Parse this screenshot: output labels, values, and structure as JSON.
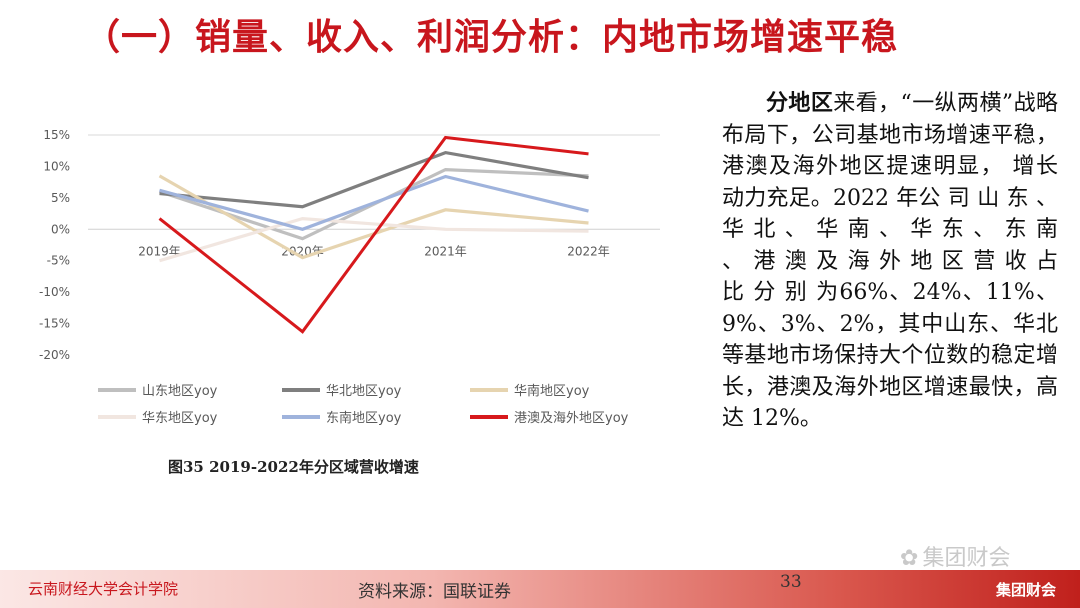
{
  "slide": {
    "title": "（一）销量、收入、利润分析：内地市场增速平稳",
    "caption": "图35 2019-2022年分区域营收增速",
    "body_bold": "分地区",
    "body_rest": "来看，“一纵两横”战略布局下，公司基地市场增速平稳，港澳及海外地区提速明显， 增长动力充足。2022 年公 司 山 东 、 华 北 、 华 南 、 华 东 、 东 南 、 港 澳 及 海 外 地 区 营 收 占 比 分 别 为66%、24%、11%、9%、3%、2%，其中山东、华北等基地市场保持大个位数的稳定增长，港澳及海外地区增速最快，高达 12%。"
  },
  "footer": {
    "school": "云南财经大学会计学院",
    "source": "资料来源：国联证券",
    "page": "33",
    "brand": "集团财会"
  },
  "watermark": {
    "icon": "wechat-icon",
    "text": "集团财会"
  },
  "chart_data": {
    "type": "line",
    "x": [
      "2019年",
      "2020年",
      "2021年",
      "2022年"
    ],
    "ylim": [
      -0.2,
      0.15
    ],
    "yticks": [
      {
        "v": 0.15,
        "label": "15%"
      },
      {
        "v": 0.1,
        "label": "10%"
      },
      {
        "v": 0.05,
        "label": "5%"
      },
      {
        "v": 0.0,
        "label": "0%"
      },
      {
        "v": -0.05,
        "label": "-5%"
      },
      {
        "v": -0.1,
        "label": "-10%"
      },
      {
        "v": -0.15,
        "label": "-15%"
      },
      {
        "v": -0.2,
        "label": "-20%"
      }
    ],
    "grid": false,
    "legend_position": "bottom",
    "series": [
      {
        "name": "山东地区yoy",
        "color": "#bfbfbf",
        "values": [
          0.06,
          -0.015,
          0.095,
          0.085
        ]
      },
      {
        "name": "华北地区yoy",
        "color": "#7f7f7f",
        "values": [
          0.057,
          0.036,
          0.122,
          0.082
        ]
      },
      {
        "name": "华南地区yoy",
        "color": "#e6d4b0",
        "values": [
          0.085,
          -0.045,
          0.031,
          0.01
        ]
      },
      {
        "name": "华东地区yoy",
        "color": "#f1e6e0",
        "values": [
          -0.05,
          0.017,
          0.0,
          -0.003
        ]
      },
      {
        "name": "东南地区yoy",
        "color": "#9fb3dc",
        "values": [
          0.062,
          0.0,
          0.084,
          0.029
        ]
      },
      {
        "name": "港澳及海外地区yoy",
        "color": "#d7191c",
        "values": [
          0.017,
          -0.163,
          0.146,
          0.12
        ]
      }
    ]
  }
}
